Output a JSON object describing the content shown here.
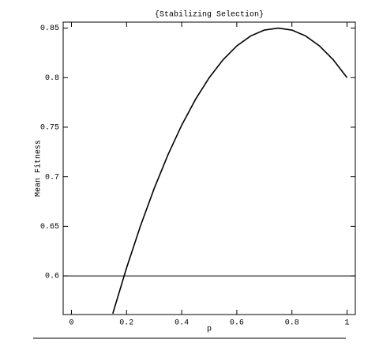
{
  "chart_data": {
    "type": "line",
    "title": "{Stabilizing Selection}",
    "x_label": "p",
    "y_label": "Mean Fitness",
    "x": [
      0.15,
      0.2,
      0.25,
      0.3,
      0.35,
      0.4,
      0.45,
      0.5,
      0.55,
      0.6,
      0.65,
      0.7,
      0.75,
      0.8,
      0.85,
      0.9,
      0.95,
      1
    ],
    "series": [
      {
        "color": "#000000",
        "values": [
          0.562,
          0.608,
          0.65,
          0.688,
          0.722,
          0.752,
          0.778,
          0.8,
          0.818,
          0.832,
          0.842,
          0.848,
          0.85,
          0.848,
          0.842,
          0.832,
          0.818,
          0.8
        ]
      }
    ],
    "hline": 0.6,
    "xlim": [
      -0.03,
      1.03
    ],
    "ylim": [
      0.561,
      0.856
    ],
    "xticks": [
      0,
      0.2,
      0.4,
      0.6,
      0.8,
      1
    ],
    "yticks": [
      0.6,
      0.65,
      0.7,
      0.75,
      0.8,
      0.85
    ]
  }
}
